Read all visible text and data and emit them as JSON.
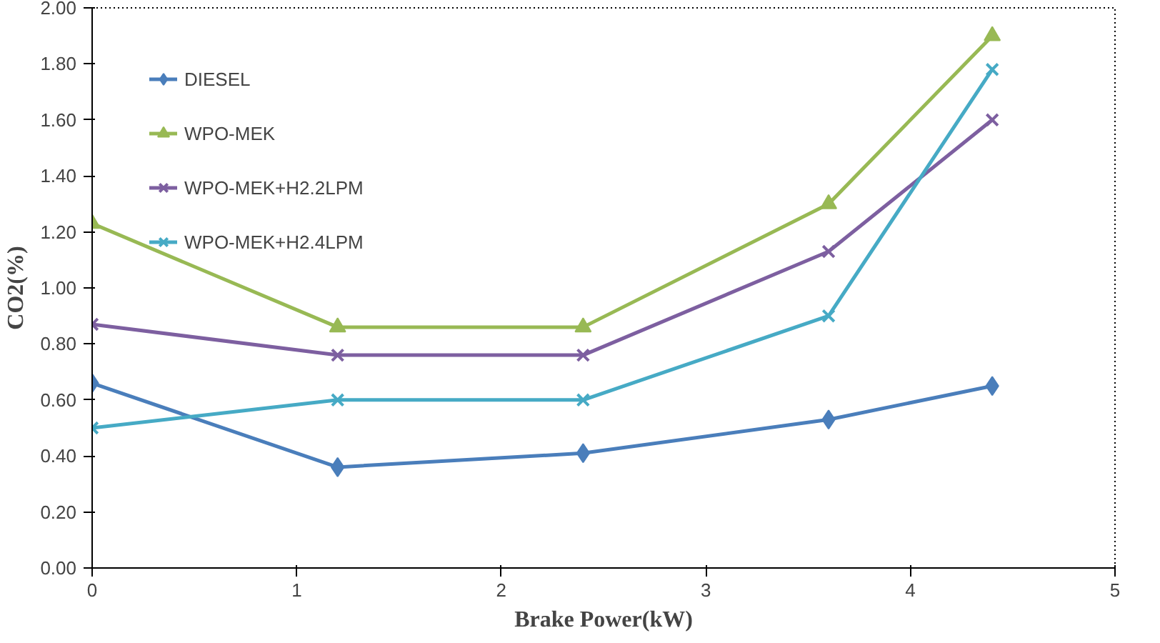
{
  "chart_data": {
    "type": "line",
    "xlabel": "Brake Power(kW)",
    "ylabel": "CO2(%)",
    "x": [
      0,
      1.2,
      2.4,
      3.6,
      4.4
    ],
    "series": [
      {
        "name": "DIESEL",
        "color": "#4a7ebb",
        "marker": "diamond",
        "values": [
          0.66,
          0.36,
          0.41,
          0.53,
          0.65
        ]
      },
      {
        "name": "WPO-MEK",
        "color": "#98b954",
        "marker": "triangle",
        "values": [
          1.23,
          0.86,
          0.86,
          1.3,
          1.9
        ]
      },
      {
        "name": "WPO-MEK+H2.2LPM",
        "color": "#7d5fa0",
        "marker": "cross",
        "values": [
          0.87,
          0.76,
          0.76,
          1.13,
          1.6
        ]
      },
      {
        "name": "WPO-MEK+H2.4LPM",
        "color": "#46aac5",
        "marker": "cross",
        "values": [
          0.5,
          0.6,
          0.6,
          0.9,
          1.78
        ]
      }
    ],
    "xlim": [
      0,
      5
    ],
    "xticks": [
      0,
      1,
      2,
      3,
      4,
      5
    ],
    "ylim": [
      0,
      2
    ],
    "yticks": [
      {
        "value": 0,
        "label": "0.00"
      },
      {
        "value": 0.2,
        "label": "0.20"
      },
      {
        "value": 0.4,
        "label": "0.40"
      },
      {
        "value": 0.6,
        "label": "0.60"
      },
      {
        "value": 0.8,
        "label": "0.80"
      },
      {
        "value": 1.0,
        "label": "1.00"
      },
      {
        "value": 1.2,
        "label": "1.20"
      },
      {
        "value": 1.4,
        "label": "1.40"
      },
      {
        "value": 1.6,
        "label": "1.60"
      },
      {
        "value": 1.8,
        "label": "1.80"
      },
      {
        "value": 2.0,
        "label": "2.00"
      }
    ],
    "legend": "top left",
    "grid": false
  }
}
